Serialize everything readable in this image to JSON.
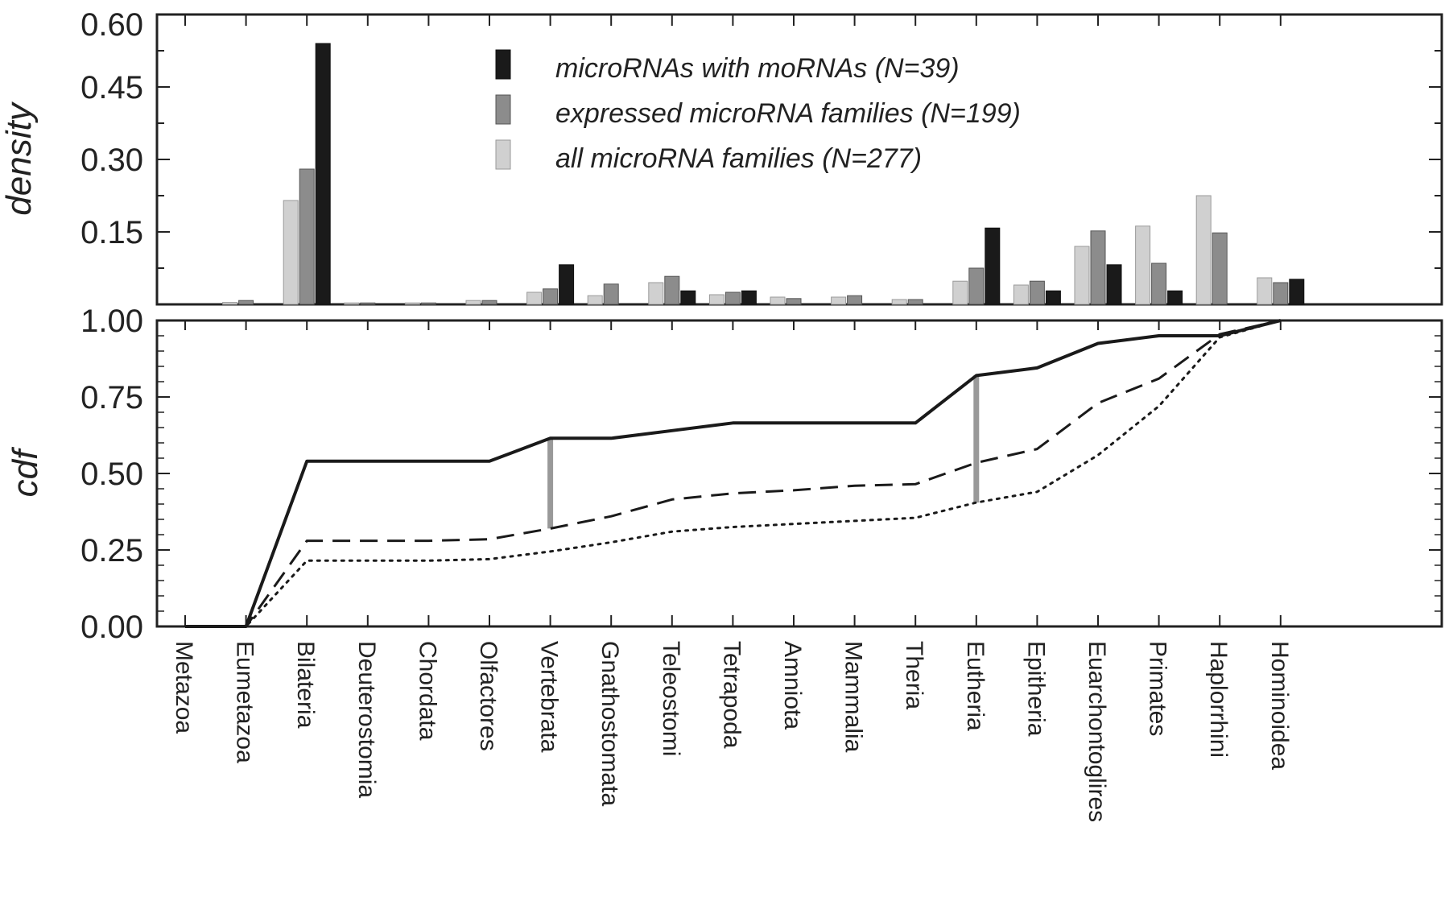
{
  "chart_data": [
    {
      "type": "bar",
      "ylabel": "density",
      "ylim": [
        0,
        0.6
      ],
      "yticks": [
        "0.60",
        "0.45",
        "0.30",
        "0.15"
      ],
      "categories": [
        "Metazoa",
        "Eumetazoa",
        "Bilateria",
        "Deuterostomia",
        "Chordata",
        "Olfactores",
        "Vertebrata",
        "Gnathostomata",
        "Teleostomi",
        "Tetrapoda",
        "Amniota",
        "Mammalia",
        "Theria",
        "Eutheria",
        "Epitheria",
        "Euarchontoglires",
        "Primates",
        "Haplorrhini",
        "Hominoidea"
      ],
      "series": [
        {
          "name": "all microRNA families (N=277)",
          "color": "#cfcfcf",
          "values": [
            0,
            0.004,
            0.215,
            0.003,
            0.003,
            0.008,
            0.025,
            0.018,
            0.045,
            0.02,
            0.015,
            0.015,
            0.01,
            0.048,
            0.04,
            0.12,
            0.162,
            0.225,
            0.055
          ]
        },
        {
          "name": "expressed microRNA families (N=199)",
          "color": "#8a8a8a",
          "values": [
            0,
            0.008,
            0.28,
            0.003,
            0.003,
            0.008,
            0.032,
            0.042,
            0.058,
            0.025,
            0.012,
            0.018,
            0.01,
            0.075,
            0.048,
            0.152,
            0.085,
            0.148,
            0.045
          ]
        },
        {
          "name": "microRNAs with moRNAs (N=39)",
          "color": "#1a1a1a",
          "values": [
            0,
            0,
            0.54,
            0,
            0,
            0,
            0.082,
            0,
            0.028,
            0.028,
            0,
            0,
            0,
            0.158,
            0.028,
            0.082,
            0.028,
            0,
            0.052
          ]
        }
      ],
      "legend": "top-center",
      "grid": false
    },
    {
      "type": "line",
      "ylabel": "cdf",
      "ylim": [
        0,
        1.0
      ],
      "yticks": [
        "1.00",
        "0.75",
        "0.50",
        "0.25",
        "0.00"
      ],
      "series": [
        {
          "name": "microRNAs with moRNAs (N=39)",
          "style": "solid",
          "values": [
            0,
            0,
            0.54,
            0.54,
            0.54,
            0.54,
            0.615,
            0.615,
            0.64,
            0.665,
            0.665,
            0.665,
            0.665,
            0.82,
            0.845,
            0.925,
            0.95,
            0.95,
            1.0
          ]
        },
        {
          "name": "expressed microRNA families (N=199)",
          "style": "dashed",
          "values": [
            0,
            0,
            0.28,
            0.28,
            0.28,
            0.285,
            0.32,
            0.36,
            0.415,
            0.435,
            0.445,
            0.46,
            0.465,
            0.535,
            0.58,
            0.73,
            0.81,
            0.955,
            1.0
          ]
        },
        {
          "name": "all microRNA families (N=277)",
          "style": "dotted",
          "values": [
            0,
            0,
            0.215,
            0.215,
            0.215,
            0.22,
            0.245,
            0.275,
            0.31,
            0.325,
            0.335,
            0.345,
            0.355,
            0.405,
            0.44,
            0.56,
            0.72,
            0.945,
            1.0
          ]
        }
      ],
      "highlights": [
        {
          "category": "Vertebrata",
          "from": 0.32,
          "to": 0.615,
          "color": "#999999"
        },
        {
          "category": "Eutheria",
          "from": 0.405,
          "to": 0.82,
          "color": "#999999"
        }
      ],
      "grid": false
    }
  ]
}
